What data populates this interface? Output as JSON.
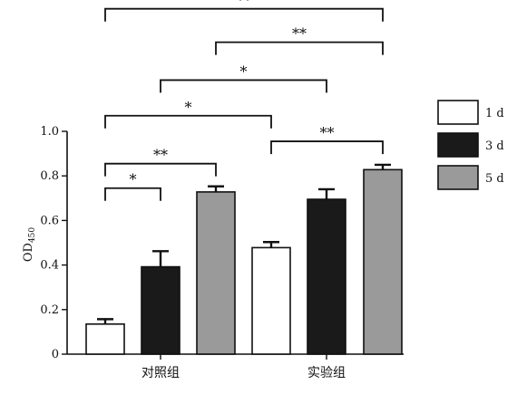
{
  "chart_data": {
    "type": "bar",
    "categories": [
      "对照组",
      "实验组"
    ],
    "ylabel": "OD",
    "ylabel_subscript": "450",
    "ylim": [
      0,
      1.0
    ],
    "yticks": [
      "0",
      "0.2",
      "0.4",
      "0.6",
      "0.8",
      "1.0"
    ],
    "series": [
      {
        "name": "1 d",
        "color": "#ffffff",
        "values": [
          0.135,
          0.478
        ],
        "errors": [
          0.022,
          0.025
        ]
      },
      {
        "name": "3 d",
        "color": "#1a1a1a",
        "values": [
          0.392,
          0.695
        ],
        "errors": [
          0.07,
          0.045
        ]
      },
      {
        "name": "5 d",
        "color": "#9a9a9a",
        "values": [
          0.728,
          0.828
        ],
        "errors": [
          0.025,
          0.022
        ]
      }
    ],
    "legend": "right",
    "grid": false,
    "significance": [
      {
        "label": "*",
        "from": [
          0,
          0
        ],
        "to": [
          0,
          1
        ],
        "level": 0.745
      },
      {
        "label": "**",
        "from": [
          0,
          0
        ],
        "to": [
          0,
          2
        ],
        "level": 0.855
      },
      {
        "label": "*",
        "from": [
          0,
          0
        ],
        "to": [
          1,
          0
        ],
        "level": 1.07
      },
      {
        "label": "**",
        "from": [
          1,
          0
        ],
        "to": [
          1,
          2
        ],
        "level": 0.955
      },
      {
        "label": "*",
        "from": [
          0,
          1
        ],
        "to": [
          1,
          1
        ],
        "level": 1.23
      },
      {
        "label": "**",
        "from": [
          0,
          2
        ],
        "to": [
          1,
          2
        ],
        "level": 1.4
      },
      {
        "label": "**",
        "from": [
          0,
          0
        ],
        "to": [
          1,
          2
        ],
        "level": 1.55
      }
    ]
  }
}
